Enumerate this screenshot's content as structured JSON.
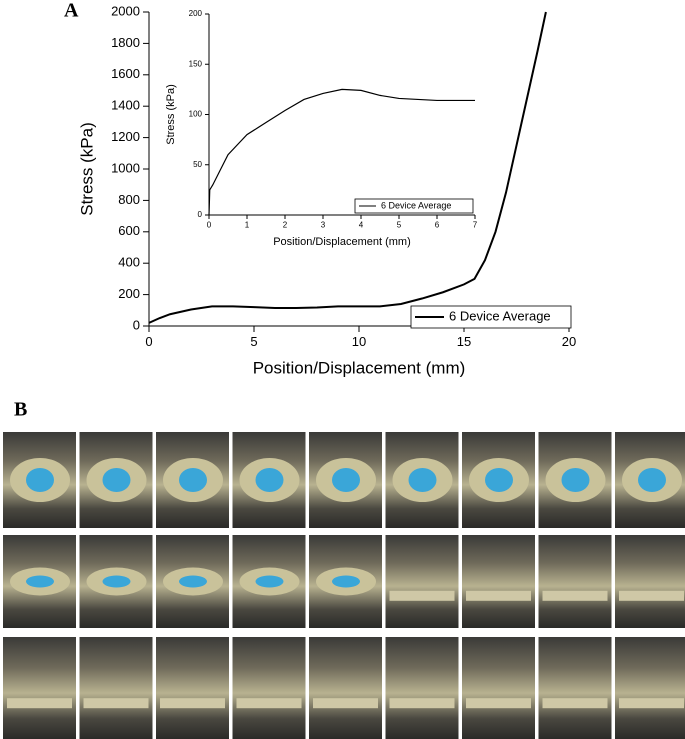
{
  "panels": {
    "a": "A",
    "b": "B"
  },
  "chart_data": [
    {
      "type": "line",
      "x": [
        0,
        0.5,
        1,
        2,
        3,
        4,
        5,
        6,
        7,
        8,
        9,
        10,
        11,
        12,
        13,
        14,
        15,
        15.5,
        16,
        16.5,
        17,
        17.5,
        18,
        18.5,
        18.9
      ],
      "series": [
        {
          "name": "6 Device Average",
          "color": "#000000",
          "values": [
            20,
            50,
            75,
            105,
            125,
            125,
            120,
            115,
            115,
            118,
            125,
            125,
            125,
            140,
            175,
            215,
            265,
            300,
            420,
            600,
            850,
            1150,
            1450,
            1750,
            2000
          ]
        }
      ],
      "xlabel": "Position/Displacement (mm)",
      "ylabel": "Stress (kPa)",
      "xlim": [
        0,
        20
      ],
      "xticks": [
        0,
        5,
        10,
        15,
        20
      ],
      "ylim": [
        0,
        2000
      ],
      "yticks": [
        0,
        200,
        400,
        600,
        800,
        1000,
        1200,
        1400,
        1600,
        1800,
        2000
      ],
      "legend": "lower right"
    },
    {
      "type": "line",
      "x": [
        0,
        0.02,
        0.1,
        0.3,
        0.5,
        0.8,
        1,
        1.5,
        2,
        2.5,
        3,
        3.5,
        4,
        4.5,
        5,
        5.5,
        6,
        6.5,
        7
      ],
      "series": [
        {
          "name": "6 Device Average",
          "color": "#000000",
          "values": [
            0,
            25,
            30,
            45,
            60,
            72,
            80,
            92,
            104,
            115,
            121,
            125,
            124,
            119,
            116,
            115,
            114,
            114,
            114
          ]
        }
      ],
      "xlabel": "Position/Displacement (mm)",
      "ylabel": "Stress (kPa)",
      "xlim": [
        0,
        7
      ],
      "xticks": [
        0,
        1,
        2,
        3,
        4,
        5,
        6,
        7
      ],
      "ylim": [
        0,
        200
      ],
      "yticks": [
        0,
        50,
        100,
        150,
        200
      ],
      "legend": "lower right"
    }
  ]
}
